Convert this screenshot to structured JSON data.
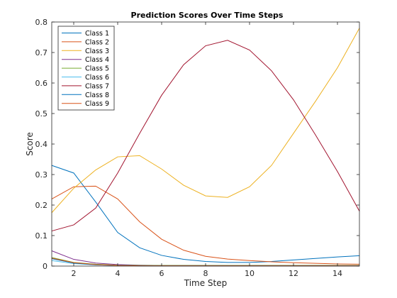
{
  "chart_data": {
    "type": "line",
    "title": "Prediction Scores Over Time Steps",
    "xlabel": "Time Step",
    "ylabel": "Score",
    "xlim": [
      1,
      15
    ],
    "ylim": [
      0,
      0.8
    ],
    "xticks": [
      2,
      4,
      6,
      8,
      10,
      12,
      14
    ],
    "yticks": [
      0,
      0.1,
      0.2,
      0.3,
      0.4,
      0.5,
      0.6,
      0.7,
      0.8
    ],
    "grid": false,
    "legend_position": "top-left",
    "x": [
      1,
      2,
      3,
      4,
      5,
      6,
      7,
      8,
      9,
      10,
      11,
      12,
      13,
      14,
      15
    ],
    "series": [
      {
        "name": "Class 1",
        "color": "#0072BD",
        "values": [
          0.33,
          0.305,
          0.21,
          0.11,
          0.06,
          0.035,
          0.022,
          0.015,
          0.012,
          0.012,
          0.015,
          0.02,
          0.025,
          0.03,
          0.034
        ]
      },
      {
        "name": "Class 2",
        "color": "#D95319",
        "values": [
          0.22,
          0.26,
          0.262,
          0.22,
          0.145,
          0.088,
          0.052,
          0.032,
          0.023,
          0.018,
          0.014,
          0.011,
          0.009,
          0.007,
          0.006
        ]
      },
      {
        "name": "Class 3",
        "color": "#EDB120",
        "values": [
          0.175,
          0.255,
          0.315,
          0.358,
          0.362,
          0.318,
          0.265,
          0.23,
          0.225,
          0.26,
          0.33,
          0.435,
          0.54,
          0.65,
          0.78
        ]
      },
      {
        "name": "Class 4",
        "color": "#7E2F8E",
        "values": [
          0.05,
          0.022,
          0.01,
          0.005,
          0.003,
          0.002,
          0.002,
          0.002,
          0.002,
          0.002,
          0.002,
          0.002,
          0.002,
          0.002,
          0.002
        ]
      },
      {
        "name": "Class 5",
        "color": "#77AC30",
        "values": [
          0.028,
          0.012,
          0.006,
          0.003,
          0.002,
          0.002,
          0.002,
          0.002,
          0.002,
          0.002,
          0.002,
          0.002,
          0.002,
          0.002,
          0.002
        ]
      },
      {
        "name": "Class 6",
        "color": "#4DBEEE",
        "values": [
          0.018,
          0.008,
          0.004,
          0.002,
          0.001,
          0.001,
          0.001,
          0.001,
          0.001,
          0.001,
          0.001,
          0.001,
          0.001,
          0.001,
          0.001
        ]
      },
      {
        "name": "Class 7",
        "color": "#A2142F",
        "values": [
          0.115,
          0.135,
          0.19,
          0.305,
          0.435,
          0.56,
          0.66,
          0.722,
          0.74,
          0.708,
          0.64,
          0.545,
          0.43,
          0.31,
          0.18
        ]
      },
      {
        "name": "Class 8",
        "color": "#0072BD",
        "values": [
          0.024,
          0.01,
          0.004,
          0.002,
          0.001,
          0.001,
          0.001,
          0.001,
          0.001,
          0.001,
          0.001,
          0.001,
          0.001,
          0.001,
          0.001
        ]
      },
      {
        "name": "Class 9",
        "color": "#D95319",
        "values": [
          0.026,
          0.011,
          0.005,
          0.002,
          0.001,
          0.001,
          0.001,
          0.001,
          0.001,
          0.001,
          0.001,
          0.001,
          0.001,
          0.001,
          0.001
        ]
      }
    ]
  }
}
